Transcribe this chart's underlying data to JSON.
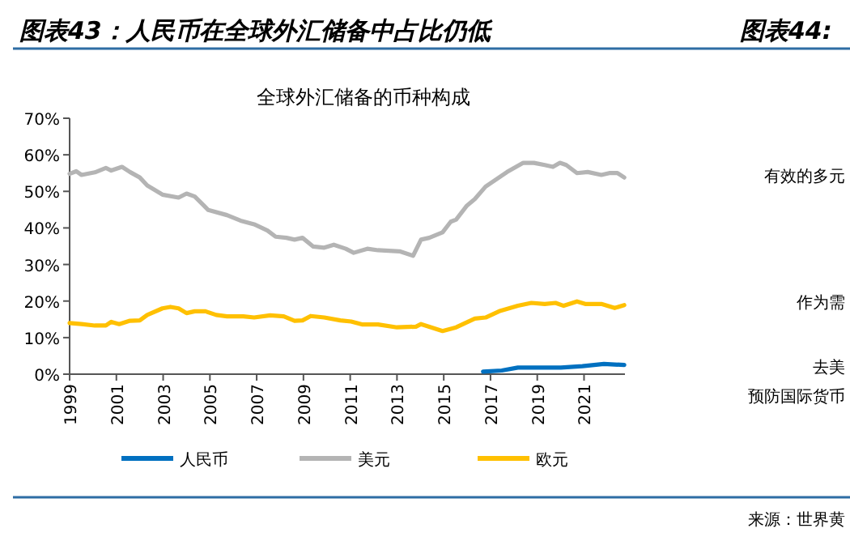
{
  "chart_data": [
    {
      "type": "line",
      "title": "图表43：人民币在全球外汇储备中占比仍低",
      "subtitle": "全球外汇储备的币种构成",
      "xlim": [
        1999,
        2022.75
      ],
      "xticks": [
        1999,
        2001,
        2003,
        2005,
        2007,
        2009,
        2011,
        2013,
        2015,
        2017,
        2019,
        2021
      ],
      "ylim": [
        0,
        70
      ],
      "yticks": [
        {
          "value": 0,
          "label": "0%"
        },
        {
          "value": 10,
          "label": "10%"
        },
        {
          "value": 20,
          "label": "20%"
        },
        {
          "value": 30,
          "label": "30%"
        },
        {
          "value": 40,
          "label": "40%"
        },
        {
          "value": 50,
          "label": "50%"
        },
        {
          "value": 60,
          "label": "60%"
        },
        {
          "value": 70,
          "label": "70%"
        }
      ],
      "legend": "bottom",
      "grid": false,
      "series": [
        {
          "name": "人民币",
          "color": "#0070c0",
          "x": [
            2016.68,
            2017.48,
            2018.17,
            2019.09,
            2020.01,
            2020.93,
            2021.85,
            2022.72
          ],
          "values": [
            0.7,
            1.0,
            1.8,
            1.8,
            1.8,
            2.2,
            2.8,
            2.5
          ]
        },
        {
          "name": "美元",
          "color": "#b4b4b4",
          "x": [
            1999.0,
            1999.28,
            1999.51,
            2000.08,
            2000.55,
            2000.78,
            2001.24,
            2001.58,
            2002.0,
            2002.32,
            2002.97,
            2003.66,
            2004.0,
            2004.35,
            2004.93,
            2005.73,
            2006.31,
            2006.89,
            2007.46,
            2007.81,
            2008.27,
            2008.62,
            2008.96,
            2009.42,
            2009.89,
            2010.3,
            2010.81,
            2011.15,
            2011.73,
            2012.19,
            2013.11,
            2013.69,
            2014.03,
            2014.38,
            2014.95,
            2015.3,
            2015.53,
            2015.99,
            2016.33,
            2016.79,
            2017.25,
            2017.71,
            2018.4,
            2018.86,
            2019.32,
            2019.67,
            2019.97,
            2020.24,
            2020.7,
            2021.16,
            2021.74,
            2022.08,
            2022.43,
            2022.72
          ],
          "values": [
            54.8,
            55.5,
            54.5,
            55.2,
            56.4,
            55.7,
            56.7,
            55.3,
            53.8,
            51.6,
            49.1,
            48.3,
            49.4,
            48.6,
            44.9,
            43.5,
            42.0,
            41.0,
            39.3,
            37.6,
            37.3,
            36.8,
            37.3,
            34.9,
            34.6,
            35.4,
            34.3,
            33.2,
            34.3,
            33.9,
            33.6,
            32.4,
            36.8,
            37.3,
            38.8,
            41.7,
            42.3,
            46.1,
            47.9,
            51.3,
            53.3,
            55.3,
            57.8,
            57.8,
            57.2,
            56.7,
            57.8,
            57.2,
            55.0,
            55.3,
            54.5,
            55.0,
            55.0,
            53.8
          ]
        },
        {
          "name": "欧元",
          "color": "#ffc000",
          "x": [
            1999.0,
            1999.51,
            2000.08,
            2000.55,
            2000.78,
            2001.12,
            2001.58,
            2002.0,
            2002.32,
            2002.97,
            2003.31,
            2003.66,
            2004.0,
            2004.35,
            2004.81,
            2005.27,
            2005.73,
            2006.43,
            2006.89,
            2007.58,
            2008.16,
            2008.62,
            2008.96,
            2009.31,
            2009.89,
            2010.58,
            2011.04,
            2011.5,
            2012.19,
            2013.0,
            2013.81,
            2014.03,
            2014.95,
            2015.53,
            2016.33,
            2016.79,
            2017.37,
            2018.17,
            2018.75,
            2019.32,
            2019.78,
            2020.13,
            2020.7,
            2021.05,
            2021.74,
            2022.31,
            2022.72
          ],
          "values": [
            14.0,
            13.7,
            13.3,
            13.3,
            14.3,
            13.7,
            14.6,
            14.7,
            16.2,
            18.0,
            18.4,
            18.0,
            16.7,
            17.2,
            17.2,
            16.2,
            15.8,
            15.8,
            15.5,
            16.1,
            15.8,
            14.6,
            14.7,
            15.9,
            15.5,
            14.7,
            14.4,
            13.6,
            13.6,
            12.8,
            13.0,
            13.7,
            11.8,
            12.8,
            15.2,
            15.5,
            17.2,
            18.7,
            19.5,
            19.2,
            19.5,
            18.7,
            19.9,
            19.2,
            19.2,
            18.1,
            18.9
          ]
        }
      ]
    },
    {
      "type": "other",
      "title": "图表44:",
      "annotations": [
        "有效的多元",
        "作为需",
        "去美",
        "预防国际货币",
        "来源：世界黄"
      ]
    }
  ]
}
